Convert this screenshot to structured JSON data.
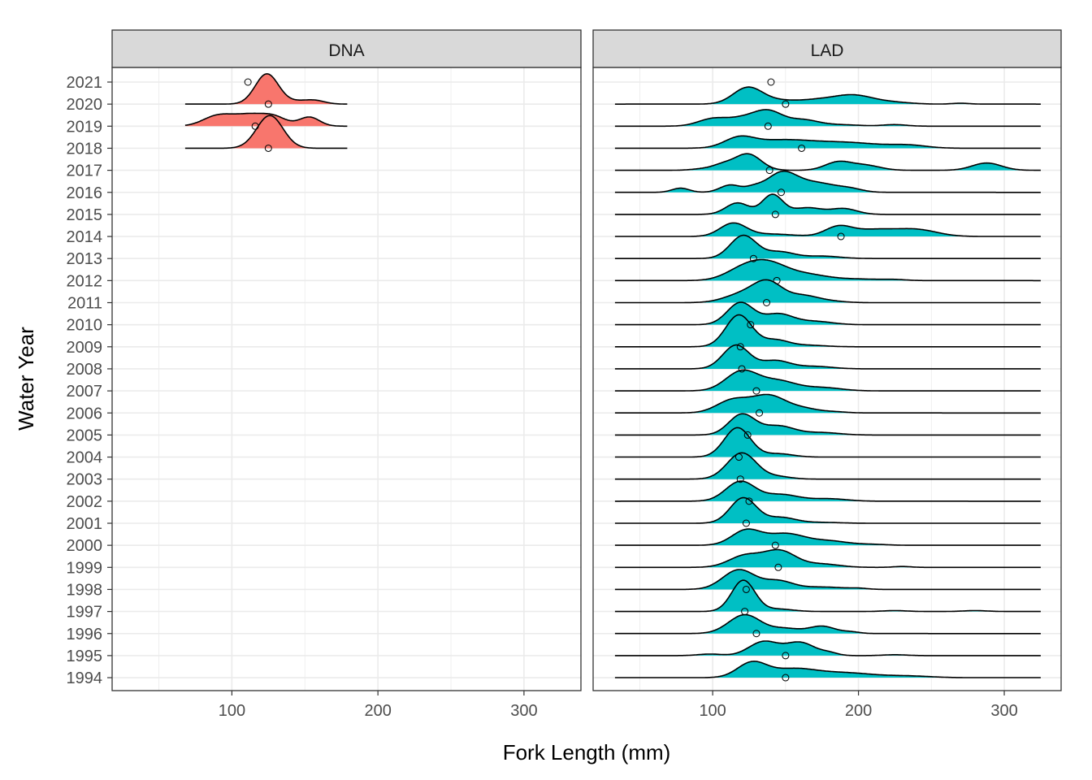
{
  "chart_data": {
    "type": "ridgeline",
    "xlabel": "Fork Length (mm)",
    "ylabel": "Water Year",
    "xlim": [
      18,
      339
    ],
    "x_ticks": [
      100,
      200,
      300
    ],
    "grid": true,
    "years": [
      2021,
      2020,
      2019,
      2018,
      2017,
      2016,
      2015,
      2014,
      2013,
      2012,
      2011,
      2010,
      2009,
      2008,
      2007,
      2006,
      2005,
      2004,
      2003,
      2002,
      2001,
      2000,
      1999,
      1998,
      1997,
      1996,
      1995,
      1994
    ],
    "panels": [
      {
        "label": "DNA",
        "color": "#F8766D",
        "range": [
          68,
          179
        ],
        "ridges": [
          {
            "year": 2020,
            "components": [
              [
                124,
                8,
                1.37
              ],
              [
                145,
                8,
                0.11
              ],
              [
                157,
                7,
                0.15
              ]
            ]
          },
          {
            "year": 2019,
            "components": [
              [
                90,
                10,
                0.44
              ],
              [
                113,
                12,
                0.52
              ],
              [
                130,
                8,
                0.3
              ],
              [
                153,
                7,
                0.41
              ]
            ]
          },
          {
            "year": 2018,
            "components": [
              [
                126,
                9,
                1.48
              ]
            ]
          }
        ],
        "points": [
          {
            "year": 2021,
            "value": 111
          },
          {
            "year": 2020,
            "value": 125
          },
          {
            "year": 2019,
            "value": 116
          },
          {
            "year": 2018,
            "value": 125
          }
        ]
      },
      {
        "label": "LAD",
        "color": "#00BFC4",
        "range": [
          33,
          325
        ],
        "ridges": [
          {
            "year": 2020,
            "components": [
              [
                124,
                10,
                0.74
              ],
              [
                145,
                12,
                0.15
              ],
              [
                170,
                12,
                0.15
              ],
              [
                196,
                14,
                0.41
              ],
              [
                225,
                12,
                0.07
              ],
              [
                270,
                6,
                0.04
              ]
            ]
          },
          {
            "year": 2019,
            "components": [
              [
                100,
                10,
                0.33
              ],
              [
                120,
                10,
                0.3
              ],
              [
                138,
                10,
                0.67
              ],
              [
                162,
                10,
                0.26
              ],
              [
                185,
                15,
                0.07
              ],
              [
                225,
                8,
                0.07
              ]
            ]
          },
          {
            "year": 2018,
            "components": [
              [
                118,
                10,
                0.41
              ],
              [
                145,
                20,
                0.33
              ],
              [
                190,
                25,
                0.26
              ],
              [
                235,
                12,
                0.11
              ]
            ]
          },
          {
            "year": 2017,
            "components": [
              [
                94,
                8,
                0.07
              ],
              [
                107,
                7,
                0.22
              ],
              [
                124,
                9,
                0.74
              ],
              [
                186,
                9,
                0.37
              ],
              [
                205,
                10,
                0.22
              ],
              [
                288,
                10,
                0.33
              ]
            ]
          },
          {
            "year": 2016,
            "components": [
              [
                78,
                6,
                0.19
              ],
              [
                112,
                7,
                0.33
              ],
              [
                128,
                6,
                0.19
              ],
              [
                147,
                10,
                0.81
              ],
              [
                170,
                15,
                0.44
              ],
              [
                195,
                8,
                0.11
              ]
            ]
          },
          {
            "year": 2015,
            "components": [
              [
                117,
                8,
                0.52
              ],
              [
                141,
                7,
                0.89
              ],
              [
                165,
                10,
                0.3
              ],
              [
                190,
                9,
                0.26
              ]
            ]
          },
          {
            "year": 2014,
            "components": [
              [
                114,
                9,
                0.59
              ],
              [
                140,
                15,
                0.11
              ],
              [
                186,
                9,
                0.41
              ],
              [
                210,
                15,
                0.3
              ],
              [
                240,
                14,
                0.3
              ]
            ]
          },
          {
            "year": 2013,
            "components": [
              [
                121,
                9,
                1.04
              ],
              [
                146,
                10,
                0.3
              ],
              [
                175,
                12,
                0.11
              ]
            ]
          },
          {
            "year": 2012,
            "components": [
              [
                120,
                12,
                0.44
              ],
              [
                138,
                13,
                0.74
              ],
              [
                165,
                14,
                0.26
              ],
              [
                200,
                15,
                0.07
              ],
              [
                225,
                8,
                0.04
              ]
            ]
          },
          {
            "year": 2011,
            "components": [
              [
                120,
                12,
                0.37
              ],
              [
                138,
                10,
                0.89
              ],
              [
                162,
                10,
                0.3
              ],
              [
                180,
                10,
                0.07
              ]
            ]
          },
          {
            "year": 2010,
            "components": [
              [
                119,
                9,
                1.0
              ],
              [
                145,
                10,
                0.48
              ],
              [
                170,
                12,
                0.15
              ]
            ]
          },
          {
            "year": 2009,
            "components": [
              [
                118,
                9,
                1.44
              ],
              [
                143,
                9,
                0.3
              ],
              [
                165,
                12,
                0.07
              ]
            ]
          },
          {
            "year": 2008,
            "components": [
              [
                116,
                9,
                1.07
              ],
              [
                143,
                10,
                0.37
              ],
              [
                170,
                12,
                0.11
              ]
            ]
          },
          {
            "year": 2007,
            "components": [
              [
                120,
                11,
                0.89
              ],
              [
                145,
                12,
                0.44
              ],
              [
                175,
                13,
                0.15
              ]
            ]
          },
          {
            "year": 2006,
            "components": [
              [
                114,
                11,
                0.59
              ],
              [
                138,
                11,
                0.74
              ],
              [
                160,
                12,
                0.22
              ],
              [
                185,
                8,
                0.04
              ]
            ]
          },
          {
            "year": 2005,
            "components": [
              [
                120,
                9,
                0.93
              ],
              [
                145,
                11,
                0.41
              ],
              [
                175,
                12,
                0.11
              ]
            ]
          },
          {
            "year": 2004,
            "components": [
              [
                117,
                9,
                1.33
              ],
              [
                145,
                10,
                0.15
              ]
            ]
          },
          {
            "year": 2003,
            "components": [
              [
                120,
                10,
                1.19
              ],
              [
                145,
                9,
                0.11
              ]
            ]
          },
          {
            "year": 2002,
            "components": [
              [
                119,
                10,
                0.89
              ],
              [
                147,
                12,
                0.3
              ],
              [
                180,
                12,
                0.11
              ]
            ]
          },
          {
            "year": 2001,
            "components": [
              [
                121,
                9,
                1.15
              ],
              [
                147,
                10,
                0.26
              ],
              [
                175,
                12,
                0.04
              ]
            ]
          },
          {
            "year": 2000,
            "components": [
              [
                123,
                10,
                0.67
              ],
              [
                150,
                13,
                0.52
              ],
              [
                180,
                13,
                0.19
              ],
              [
                210,
                10,
                0.04
              ]
            ]
          },
          {
            "year": 1999,
            "components": [
              [
                122,
                11,
                0.52
              ],
              [
                146,
                11,
                0.74
              ],
              [
                175,
                12,
                0.15
              ],
              [
                230,
                6,
                0.04
              ]
            ]
          },
          {
            "year": 1998,
            "components": [
              [
                118,
                11,
                0.89
              ],
              [
                145,
                10,
                0.37
              ],
              [
                175,
                15,
                0.11
              ],
              [
                200,
                6,
                0.04
              ]
            ]
          },
          {
            "year": 1997,
            "components": [
              [
                121,
                8,
                1.41
              ],
              [
                145,
                10,
                0.11
              ],
              [
                225,
                8,
                0.04
              ],
              [
                280,
                8,
                0.04
              ]
            ]
          },
          {
            "year": 1996,
            "components": [
              [
                122,
                11,
                0.85
              ],
              [
                150,
                10,
                0.22
              ],
              [
                175,
                9,
                0.33
              ],
              [
                195,
                6,
                0.07
              ]
            ]
          },
          {
            "year": 1995,
            "components": [
              [
                98,
                8,
                0.07
              ],
              [
                135,
                10,
                0.63
              ],
              [
                160,
                10,
                0.59
              ],
              [
                180,
                6,
                0.11
              ],
              [
                225,
                8,
                0.04
              ]
            ]
          },
          {
            "year": 1994,
            "components": [
              [
                127,
                10,
                0.67
              ],
              [
                155,
                15,
                0.37
              ],
              [
                190,
                20,
                0.22
              ],
              [
                235,
                15,
                0.07
              ]
            ]
          }
        ],
        "points": [
          {
            "year": 2021,
            "value": 140
          },
          {
            "year": 2020,
            "value": 150
          },
          {
            "year": 2019,
            "value": 138
          },
          {
            "year": 2018,
            "value": 161
          },
          {
            "year": 2017,
            "value": 139
          },
          {
            "year": 2016,
            "value": 147
          },
          {
            "year": 2015,
            "value": 143
          },
          {
            "year": 2014,
            "value": 188
          },
          {
            "year": 2013,
            "value": 128
          },
          {
            "year": 2012,
            "value": 144
          },
          {
            "year": 2011,
            "value": 137
          },
          {
            "year": 2010,
            "value": 126
          },
          {
            "year": 2009,
            "value": 119
          },
          {
            "year": 2008,
            "value": 120
          },
          {
            "year": 2007,
            "value": 130
          },
          {
            "year": 2006,
            "value": 132
          },
          {
            "year": 2005,
            "value": 124
          },
          {
            "year": 2004,
            "value": 118
          },
          {
            "year": 2003,
            "value": 119
          },
          {
            "year": 2002,
            "value": 125
          },
          {
            "year": 2001,
            "value": 123
          },
          {
            "year": 2000,
            "value": 143
          },
          {
            "year": 1999,
            "value": 145
          },
          {
            "year": 1998,
            "value": 123
          },
          {
            "year": 1997,
            "value": 122
          },
          {
            "year": 1996,
            "value": 130
          },
          {
            "year": 1995,
            "value": 150
          },
          {
            "year": 1994,
            "value": 150
          }
        ]
      }
    ]
  }
}
